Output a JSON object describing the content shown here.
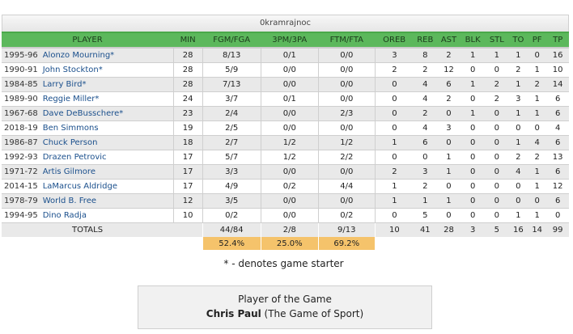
{
  "team_name": "0kramrajnoc",
  "columns": [
    "PLAYER",
    "MIN",
    "FGM/FGA",
    "3PM/3PA",
    "FTM/FTA",
    "OREB",
    "REB",
    "AST",
    "BLK",
    "STL",
    "TO",
    "PF",
    "TP"
  ],
  "rows": [
    {
      "season": "1995-96",
      "player": "Alonzo Mourning*",
      "min": "28",
      "fg": "8/13",
      "tp3": "0/1",
      "ft": "0/0",
      "oreb": "3",
      "reb": "8",
      "ast": "2",
      "blk": "1",
      "stl": "1",
      "to": "1",
      "pf": "0",
      "tp": "16"
    },
    {
      "season": "1990-91",
      "player": "John Stockton*",
      "min": "28",
      "fg": "5/9",
      "tp3": "0/0",
      "ft": "0/0",
      "oreb": "2",
      "reb": "2",
      "ast": "12",
      "blk": "0",
      "stl": "0",
      "to": "2",
      "pf": "1",
      "tp": "10"
    },
    {
      "season": "1984-85",
      "player": "Larry Bird*",
      "min": "28",
      "fg": "7/13",
      "tp3": "0/0",
      "ft": "0/0",
      "oreb": "0",
      "reb": "4",
      "ast": "6",
      "blk": "1",
      "stl": "2",
      "to": "1",
      "pf": "2",
      "tp": "14"
    },
    {
      "season": "1989-90",
      "player": "Reggie Miller*",
      "min": "24",
      "fg": "3/7",
      "tp3": "0/1",
      "ft": "0/0",
      "oreb": "0",
      "reb": "4",
      "ast": "2",
      "blk": "0",
      "stl": "2",
      "to": "3",
      "pf": "1",
      "tp": "6"
    },
    {
      "season": "1967-68",
      "player": "Dave DeBusschere*",
      "min": "23",
      "fg": "2/4",
      "tp3": "0/0",
      "ft": "2/3",
      "oreb": "0",
      "reb": "2",
      "ast": "0",
      "blk": "1",
      "stl": "0",
      "to": "1",
      "pf": "1",
      "tp": "6"
    },
    {
      "season": "2018-19",
      "player": "Ben Simmons",
      "min": "19",
      "fg": "2/5",
      "tp3": "0/0",
      "ft": "0/0",
      "oreb": "0",
      "reb": "4",
      "ast": "3",
      "blk": "0",
      "stl": "0",
      "to": "0",
      "pf": "0",
      "tp": "4"
    },
    {
      "season": "1986-87",
      "player": "Chuck Person",
      "min": "18",
      "fg": "2/7",
      "tp3": "1/2",
      "ft": "1/2",
      "oreb": "1",
      "reb": "6",
      "ast": "0",
      "blk": "0",
      "stl": "0",
      "to": "1",
      "pf": "4",
      "tp": "6"
    },
    {
      "season": "1992-93",
      "player": "Drazen Petrovic",
      "min": "17",
      "fg": "5/7",
      "tp3": "1/2",
      "ft": "2/2",
      "oreb": "0",
      "reb": "0",
      "ast": "1",
      "blk": "0",
      "stl": "0",
      "to": "2",
      "pf": "2",
      "tp": "13"
    },
    {
      "season": "1971-72",
      "player": "Artis Gilmore",
      "min": "17",
      "fg": "3/3",
      "tp3": "0/0",
      "ft": "0/0",
      "oreb": "2",
      "reb": "3",
      "ast": "1",
      "blk": "0",
      "stl": "0",
      "to": "4",
      "pf": "1",
      "tp": "6"
    },
    {
      "season": "2014-15",
      "player": "LaMarcus Aldridge",
      "min": "17",
      "fg": "4/9",
      "tp3": "0/2",
      "ft": "4/4",
      "oreb": "1",
      "reb": "2",
      "ast": "0",
      "blk": "0",
      "stl": "0",
      "to": "0",
      "pf": "1",
      "tp": "12"
    },
    {
      "season": "1978-79",
      "player": "World B. Free",
      "min": "12",
      "fg": "3/5",
      "tp3": "0/0",
      "ft": "0/0",
      "oreb": "1",
      "reb": "1",
      "ast": "1",
      "blk": "0",
      "stl": "0",
      "to": "0",
      "pf": "0",
      "tp": "6"
    },
    {
      "season": "1994-95",
      "player": "Dino Radja",
      "min": "10",
      "fg": "0/2",
      "tp3": "0/0",
      "ft": "0/2",
      "oreb": "0",
      "reb": "5",
      "ast": "0",
      "blk": "0",
      "stl": "0",
      "to": "1",
      "pf": "1",
      "tp": "0"
    }
  ],
  "totals": {
    "label": "TOTALS",
    "fg": "44/84",
    "tp3": "2/8",
    "ft": "9/13",
    "oreb": "10",
    "reb": "41",
    "ast": "28",
    "blk": "3",
    "stl": "5",
    "to": "16",
    "pf": "14",
    "tp": "99"
  },
  "pct": {
    "fg": "52.4%",
    "tp3": "25.0%",
    "ft": "69.2%"
  },
  "starter_note": "* - denotes game starter",
  "potg": {
    "title": "Player of the Game",
    "name": "Chris Paul",
    "team": " (The Game of Sport)"
  },
  "colors": {
    "header_green": "#5cb85c",
    "totals_gold": "#f5c36b",
    "link_blue": "#1a4f8c"
  }
}
